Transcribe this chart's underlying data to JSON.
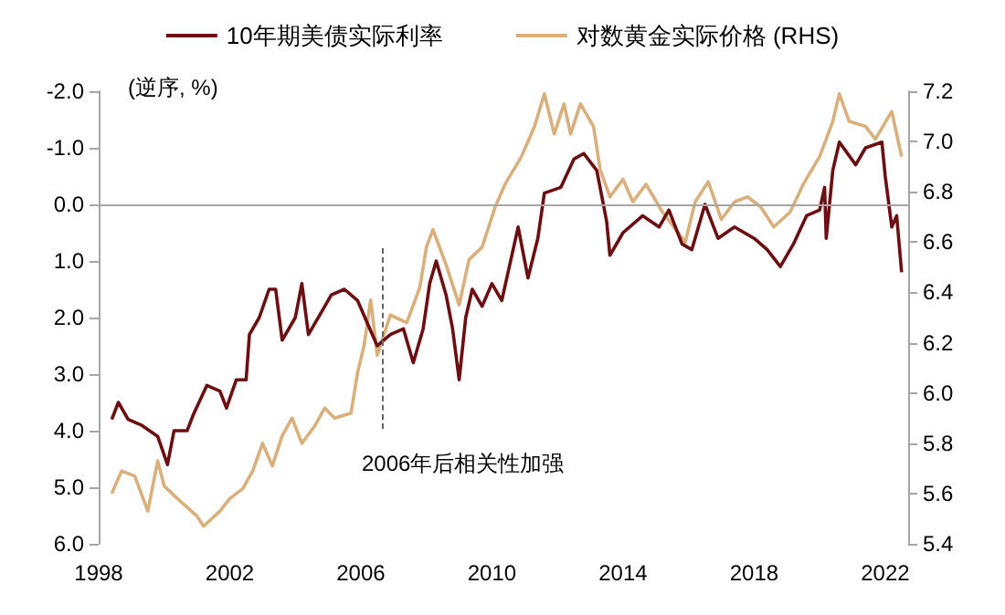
{
  "chart_data": {
    "type": "line",
    "ylabel": "(逆序, %)",
    "xlim": [
      1998,
      2022.7
    ],
    "xticks": [
      1998,
      2002,
      2006,
      2010,
      2014,
      2018,
      2022
    ],
    "ylim": [
      6,
      -2
    ],
    "yticks": [
      {
        "value": -2,
        "label": "-2.0"
      },
      {
        "value": -1,
        "label": "-1.0"
      },
      {
        "value": 0,
        "label": "0.0"
      },
      {
        "value": 1,
        "label": "1.0"
      },
      {
        "value": 2,
        "label": "2.0"
      },
      {
        "value": 3,
        "label": "3.0"
      },
      {
        "value": 4,
        "label": "4.0"
      },
      {
        "value": 5,
        "label": "5.0"
      },
      {
        "value": 6,
        "label": "6.0"
      }
    ],
    "y2lim": [
      5.4,
      7.2
    ],
    "y2ticks": [
      {
        "value": 5.4,
        "label": "5.4"
      },
      {
        "value": 5.6,
        "label": "5.6"
      },
      {
        "value": 5.8,
        "label": "5.8"
      },
      {
        "value": 6.0,
        "label": "6.0"
      },
      {
        "value": 6.2,
        "label": "6.2"
      },
      {
        "value": 6.4,
        "label": "6.4"
      },
      {
        "value": 6.6,
        "label": "6.6"
      },
      {
        "value": 6.8,
        "label": "6.8"
      },
      {
        "value": 7.0,
        "label": "7.0"
      },
      {
        "value": 7.2,
        "label": "7.2"
      }
    ],
    "legend": "top",
    "grid": false,
    "ref_lines": [
      {
        "axis": "y",
        "value": 0,
        "color": "#a6a6a6"
      }
    ],
    "annotations": [
      "2006年后相关性加强"
    ],
    "series": [
      {
        "name": "10年期美债实际利率",
        "color": "#6b0f12",
        "x": [
          1998.4,
          1998.6,
          1998.9,
          1999.3,
          1999.8,
          2000.1,
          2000.3,
          2000.7,
          2000.9,
          2001.3,
          2001.7,
          2001.9,
          2002.2,
          2002.5,
          2002.6,
          2002.9,
          2003.2,
          2003.4,
          2003.6,
          2004.0,
          2004.2,
          2004.4,
          2004.8,
          2005.1,
          2005.5,
          2005.9,
          2006.2,
          2006.5,
          2006.9,
          2007.3,
          2007.6,
          2007.9,
          2008.1,
          2008.3,
          2008.6,
          2008.8,
          2009.0,
          2009.2,
          2009.4,
          2009.7,
          2010.0,
          2010.3,
          2010.8,
          2011.1,
          2011.4,
          2011.6,
          2012.1,
          2012.5,
          2012.8,
          2013.2,
          2013.5,
          2013.6,
          2014.0,
          2014.6,
          2015.1,
          2015.4,
          2015.8,
          2016.1,
          2016.5,
          2016.9,
          2017.4,
          2018.0,
          2018.4,
          2018.8,
          2019.2,
          2019.6,
          2020.0,
          2020.15,
          2020.2,
          2020.4,
          2020.6,
          2021.1,
          2021.4,
          2021.9,
          2022.0,
          2022.2,
          2022.35,
          2022.5
        ],
        "values": [
          3.8,
          3.5,
          3.8,
          3.9,
          4.1,
          4.6,
          4.0,
          4.0,
          3.7,
          3.2,
          3.3,
          3.6,
          3.1,
          3.1,
          2.3,
          2.0,
          1.5,
          1.5,
          2.4,
          2.0,
          1.4,
          2.3,
          1.9,
          1.6,
          1.5,
          1.7,
          2.1,
          2.5,
          2.3,
          2.2,
          2.8,
          2.2,
          1.4,
          1.0,
          1.6,
          2.2,
          3.1,
          2.0,
          1.5,
          1.8,
          1.4,
          1.7,
          0.4,
          1.3,
          0.6,
          -0.2,
          -0.3,
          -0.8,
          -0.9,
          -0.6,
          0.3,
          0.9,
          0.5,
          0.2,
          0.4,
          0.1,
          0.7,
          0.8,
          0.0,
          0.6,
          0.4,
          0.6,
          0.8,
          1.1,
          0.7,
          0.2,
          0.1,
          -0.3,
          0.6,
          -0.6,
          -1.1,
          -0.7,
          -1.0,
          -1.1,
          -0.5,
          0.4,
          0.2,
          1.2
        ]
      },
      {
        "name": "对数黄金实际价格 (RHS)",
        "color": "#d9b07c",
        "axis": "y2",
        "x": [
          1998.4,
          1998.7,
          1999.1,
          1999.5,
          1999.8,
          2000.0,
          2000.4,
          2001.0,
          2001.2,
          2001.7,
          2002.0,
          2002.4,
          2002.7,
          2003.0,
          2003.3,
          2003.6,
          2003.9,
          2004.2,
          2004.6,
          2004.9,
          2005.2,
          2005.7,
          2005.9,
          2006.1,
          2006.3,
          2006.5,
          2006.9,
          2007.4,
          2007.8,
          2008.0,
          2008.2,
          2008.6,
          2009.0,
          2009.3,
          2009.7,
          2010.1,
          2010.4,
          2010.9,
          2011.3,
          2011.6,
          2011.9,
          2012.2,
          2012.4,
          2012.7,
          2013.1,
          2013.3,
          2013.6,
          2014.0,
          2014.3,
          2014.7,
          2015.2,
          2015.9,
          2016.2,
          2016.6,
          2017.0,
          2017.4,
          2017.8,
          2018.2,
          2018.6,
          2019.1,
          2019.5,
          2020.0,
          2020.4,
          2020.6,
          2020.9,
          2021.4,
          2021.7,
          2022.2,
          2022.5
        ],
        "values": [
          5.6,
          5.69,
          5.67,
          5.53,
          5.73,
          5.63,
          5.58,
          5.51,
          5.47,
          5.53,
          5.58,
          5.62,
          5.69,
          5.8,
          5.71,
          5.83,
          5.9,
          5.8,
          5.87,
          5.94,
          5.9,
          5.92,
          6.08,
          6.19,
          6.37,
          6.15,
          6.31,
          6.28,
          6.42,
          6.58,
          6.65,
          6.51,
          6.35,
          6.53,
          6.58,
          6.74,
          6.83,
          6.94,
          7.06,
          7.19,
          7.03,
          7.15,
          7.03,
          7.15,
          7.06,
          6.89,
          6.78,
          6.85,
          6.76,
          6.83,
          6.72,
          6.6,
          6.76,
          6.84,
          6.69,
          6.76,
          6.78,
          6.74,
          6.66,
          6.72,
          6.83,
          6.94,
          7.08,
          7.19,
          7.08,
          7.06,
          7.01,
          7.12,
          6.94
        ]
      }
    ]
  }
}
